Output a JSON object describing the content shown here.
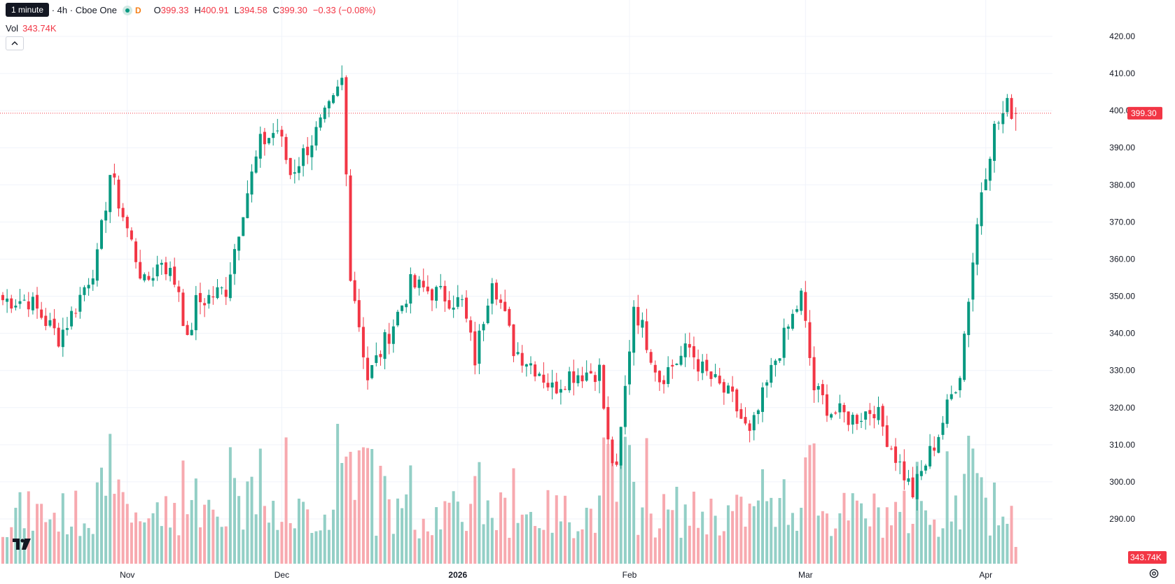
{
  "legend": {
    "symbol": "…com Inc. · 4h · Cboe One",
    "tooltip": "1 minute",
    "badge_letter": "D",
    "open_label": "O",
    "open": "399.33",
    "high_label": "H",
    "high": "400.91",
    "low_label": "L",
    "low": "394.58",
    "close_label": "C",
    "close": "399.30",
    "change": "−0.33 (−0.08%)"
  },
  "volume": {
    "label": "Vol",
    "value": "343.74K"
  },
  "colors": {
    "up": "#089981",
    "down": "#f23645",
    "up_volume": "#93cfc6",
    "down_volume": "#f7a9af",
    "grid": "#f0f3fa",
    "axis_text": "#131722"
  },
  "icons": {
    "collapse": "chevron-up-icon",
    "logo": "tradingview-logo-icon",
    "settings": "gear-icon"
  },
  "chart_data": {
    "type": "candlestick",
    "title": "",
    "xlabel": "",
    "ylabel": "",
    "ylim": [
      284,
      424
    ],
    "y_ticks": [
      "420.00",
      "410.00",
      "400.00",
      "390.00",
      "380.00",
      "370.00",
      "360.00",
      "350.00",
      "340.00",
      "330.00",
      "320.00",
      "310.00",
      "300.00",
      "290.00"
    ],
    "x_ticks": [
      {
        "label": "Nov",
        "index": 29,
        "bold": false
      },
      {
        "label": "Dec",
        "index": 65,
        "bold": false
      },
      {
        "label": "2026",
        "index": 106,
        "bold": true
      },
      {
        "label": "Feb",
        "index": 146,
        "bold": false
      },
      {
        "label": "Mar",
        "index": 187,
        "bold": false
      },
      {
        "label": "Apr",
        "index": 229,
        "bold": false
      }
    ],
    "last_price": "399.30",
    "last_price_value": 399.3,
    "last_volume": "343.74K",
    "grid": true,
    "volume_scale_max": 1
  }
}
